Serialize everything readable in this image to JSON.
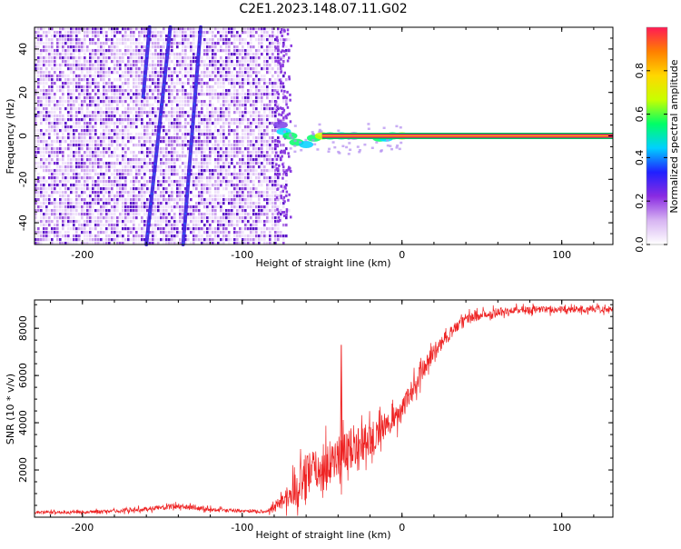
{
  "title": "C2E1.2023.148.07.11.G02",
  "chart_data": [
    {
      "type": "heatmap",
      "xlabel": "Height of straight line (km)",
      "ylabel": "Frequency (Hz)",
      "xlim": [
        -230,
        132
      ],
      "ylim": [
        -50,
        50
      ],
      "xticks": [
        -200,
        -100,
        0,
        100
      ],
      "yticks": [
        -40,
        -20,
        0,
        20,
        40
      ],
      "grid": false,
      "colorbar": {
        "label": "Normalized spectral amplitude",
        "range": [
          0,
          1
        ],
        "ticks": [
          0.0,
          0.2,
          0.4,
          0.6,
          0.8
        ],
        "colors": [
          "#ffffff",
          "#d7b4f2",
          "#8a2be2",
          "#2020ff",
          "#00d0ff",
          "#00ff66",
          "#c8ff00",
          "#ffd700",
          "#ff7f00",
          "#ff1a55"
        ]
      },
      "features": {
        "noise_region_x": [
          -230,
          -78
        ],
        "signal_tone_freq": 0,
        "signal_start_x": -78,
        "streaks": [
          {
            "x0": -160,
            "y0": -50,
            "x1": -145,
            "y1": 50
          },
          {
            "x0": -137,
            "y0": -50,
            "x1": -126,
            "y1": 50
          },
          {
            "x0": -162,
            "y0": 18,
            "x1": -158,
            "y1": 50
          }
        ]
      }
    },
    {
      "type": "line",
      "xlabel": "Height of straight line (km)",
      "ylabel": "SNR (10 * v/v)",
      "xlim": [
        -230,
        132
      ],
      "ylim": [
        0,
        9200
      ],
      "xticks": [
        -200,
        -100,
        0,
        100
      ],
      "yticks": [
        2000,
        4000,
        6000,
        8000
      ],
      "grid": false,
      "color": "#ee2222",
      "x": [
        -230,
        -200,
        -180,
        -160,
        -140,
        -120,
        -100,
        -85,
        -70,
        -60,
        -50,
        -40,
        -30,
        -20,
        -10,
        0,
        10,
        20,
        30,
        40,
        60,
        80,
        100,
        120,
        132
      ],
      "y": [
        200,
        220,
        260,
        340,
        480,
        330,
        260,
        230,
        900,
        1700,
        2100,
        2600,
        3000,
        3300,
        3900,
        4500,
        5900,
        7000,
        7800,
        8400,
        8700,
        8800,
        8800,
        8800,
        8800
      ],
      "noise_amplitude": [
        80,
        90,
        100,
        140,
        160,
        120,
        90,
        80,
        800,
        1400,
        1400,
        1300,
        1200,
        1000,
        800,
        700,
        600,
        500,
        400,
        300,
        250,
        220,
        200,
        200,
        200
      ],
      "spike": {
        "x": -38,
        "y": 7300
      }
    }
  ]
}
